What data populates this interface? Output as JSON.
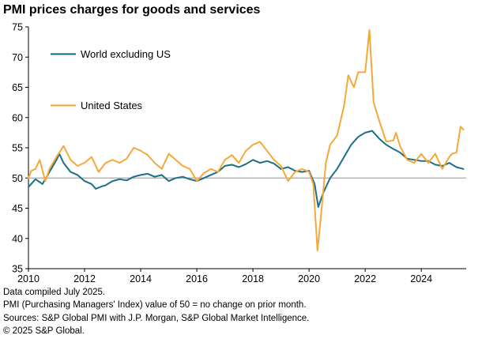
{
  "title": "PMI prices charges for goods and services",
  "footer": {
    "line1": "Data compiled July 2025.",
    "line2": "PMI (Purchasing Managers' Index) value of 50 = no change on prior month.",
    "line3": "Sources: S&P Global PMI with J.P. Morgan, S&P Global Market Intelligence.",
    "line4": "© 2025 S&P Global."
  },
  "colors": {
    "world_ex_us": "#1b6f86",
    "united_states": "#f5a83a",
    "reference_line": "#a6a6a6",
    "axis": "#000000"
  },
  "chart_data": {
    "type": "line",
    "title": "PMI prices charges for goods and services",
    "xlabel": "",
    "ylabel": "",
    "xlim": [
      2010,
      2025.6
    ],
    "ylim": [
      35,
      75
    ],
    "x_ticks": [
      2010,
      2012,
      2014,
      2016,
      2018,
      2020,
      2022,
      2024
    ],
    "y_ticks": [
      35,
      40,
      45,
      50,
      55,
      60,
      65,
      70,
      75
    ],
    "reference_line": 50,
    "grid": false,
    "legend_placement": "top-left",
    "series": [
      {
        "name": "World excluding US",
        "color": "#1b6f86",
        "points": [
          [
            2010.0,
            48.5
          ],
          [
            2010.25,
            49.8
          ],
          [
            2010.5,
            49.0
          ],
          [
            2010.75,
            51.0
          ],
          [
            2011.0,
            53.0
          ],
          [
            2011.1,
            54.0
          ],
          [
            2011.25,
            52.5
          ],
          [
            2011.5,
            51.0
          ],
          [
            2011.75,
            50.5
          ],
          [
            2012.0,
            49.5
          ],
          [
            2012.25,
            49.0
          ],
          [
            2012.4,
            48.2
          ],
          [
            2012.6,
            48.6
          ],
          [
            2012.75,
            48.8
          ],
          [
            2013.0,
            49.5
          ],
          [
            2013.25,
            49.8
          ],
          [
            2013.5,
            49.6
          ],
          [
            2013.75,
            50.2
          ],
          [
            2014.0,
            50.5
          ],
          [
            2014.25,
            50.7
          ],
          [
            2014.5,
            50.2
          ],
          [
            2014.75,
            50.5
          ],
          [
            2015.0,
            49.5
          ],
          [
            2015.25,
            50.0
          ],
          [
            2015.5,
            50.2
          ],
          [
            2015.75,
            49.8
          ],
          [
            2016.0,
            49.5
          ],
          [
            2016.25,
            50.0
          ],
          [
            2016.5,
            50.5
          ],
          [
            2016.75,
            51.0
          ],
          [
            2017.0,
            52.0
          ],
          [
            2017.25,
            52.2
          ],
          [
            2017.5,
            51.8
          ],
          [
            2017.75,
            52.3
          ],
          [
            2018.0,
            53.0
          ],
          [
            2018.25,
            52.5
          ],
          [
            2018.5,
            52.8
          ],
          [
            2018.75,
            52.4
          ],
          [
            2019.0,
            51.5
          ],
          [
            2019.25,
            51.8
          ],
          [
            2019.5,
            51.2
          ],
          [
            2019.75,
            51.0
          ],
          [
            2020.0,
            51.2
          ],
          [
            2020.2,
            49.0
          ],
          [
            2020.33,
            45.2
          ],
          [
            2020.5,
            47.5
          ],
          [
            2020.75,
            50.0
          ],
          [
            2021.0,
            51.5
          ],
          [
            2021.25,
            53.5
          ],
          [
            2021.5,
            55.5
          ],
          [
            2021.75,
            56.8
          ],
          [
            2022.0,
            57.5
          ],
          [
            2022.25,
            57.8
          ],
          [
            2022.5,
            56.5
          ],
          [
            2022.75,
            55.5
          ],
          [
            2023.0,
            54.8
          ],
          [
            2023.25,
            54.2
          ],
          [
            2023.5,
            53.2
          ],
          [
            2023.75,
            53.0
          ],
          [
            2024.0,
            52.8
          ],
          [
            2024.25,
            52.8
          ],
          [
            2024.5,
            52.2
          ],
          [
            2024.75,
            52.0
          ],
          [
            2025.0,
            52.5
          ],
          [
            2025.25,
            51.8
          ],
          [
            2025.5,
            51.5
          ]
        ]
      },
      {
        "name": "United States",
        "color": "#f5a83a",
        "points": [
          [
            2010.0,
            50.0
          ],
          [
            2010.1,
            51.2
          ],
          [
            2010.25,
            51.5
          ],
          [
            2010.4,
            53.0
          ],
          [
            2010.6,
            49.5
          ],
          [
            2010.75,
            51.5
          ],
          [
            2011.0,
            53.5
          ],
          [
            2011.25,
            55.3
          ],
          [
            2011.5,
            53.0
          ],
          [
            2011.75,
            52.0
          ],
          [
            2012.0,
            52.5
          ],
          [
            2012.25,
            53.5
          ],
          [
            2012.5,
            51.0
          ],
          [
            2012.75,
            52.5
          ],
          [
            2013.0,
            53.0
          ],
          [
            2013.25,
            52.5
          ],
          [
            2013.5,
            53.2
          ],
          [
            2013.75,
            55.0
          ],
          [
            2014.0,
            54.5
          ],
          [
            2014.25,
            53.8
          ],
          [
            2014.5,
            52.5
          ],
          [
            2014.75,
            51.5
          ],
          [
            2015.0,
            54.0
          ],
          [
            2015.25,
            53.0
          ],
          [
            2015.5,
            52.0
          ],
          [
            2015.75,
            51.5
          ],
          [
            2016.0,
            49.5
          ],
          [
            2016.25,
            50.8
          ],
          [
            2016.5,
            51.5
          ],
          [
            2016.75,
            51.0
          ],
          [
            2017.0,
            53.0
          ],
          [
            2017.25,
            53.8
          ],
          [
            2017.5,
            52.5
          ],
          [
            2017.75,
            54.5
          ],
          [
            2018.0,
            55.5
          ],
          [
            2018.25,
            56.0
          ],
          [
            2018.5,
            54.5
          ],
          [
            2018.75,
            53.0
          ],
          [
            2019.0,
            52.0
          ],
          [
            2019.25,
            49.5
          ],
          [
            2019.5,
            51.0
          ],
          [
            2019.75,
            51.5
          ],
          [
            2020.0,
            51.0
          ],
          [
            2020.15,
            49.0
          ],
          [
            2020.3,
            38.0
          ],
          [
            2020.45,
            45.0
          ],
          [
            2020.6,
            52.5
          ],
          [
            2020.75,
            55.5
          ],
          [
            2021.0,
            57.0
          ],
          [
            2021.1,
            59.0
          ],
          [
            2021.25,
            62.0
          ],
          [
            2021.4,
            67.0
          ],
          [
            2021.6,
            65.0
          ],
          [
            2021.75,
            67.5
          ],
          [
            2022.0,
            67.5
          ],
          [
            2022.15,
            74.5
          ],
          [
            2022.3,
            62.5
          ],
          [
            2022.5,
            59.5
          ],
          [
            2022.75,
            56.0
          ],
          [
            2023.0,
            56.2
          ],
          [
            2023.1,
            57.5
          ],
          [
            2023.25,
            55.2
          ],
          [
            2023.5,
            53.0
          ],
          [
            2023.75,
            52.5
          ],
          [
            2024.0,
            54.0
          ],
          [
            2024.25,
            52.5
          ],
          [
            2024.5,
            54.0
          ],
          [
            2024.75,
            51.5
          ],
          [
            2025.0,
            53.5
          ],
          [
            2025.1,
            54.0
          ],
          [
            2025.25,
            54.2
          ],
          [
            2025.4,
            58.5
          ],
          [
            2025.5,
            58.0
          ]
        ]
      }
    ]
  }
}
